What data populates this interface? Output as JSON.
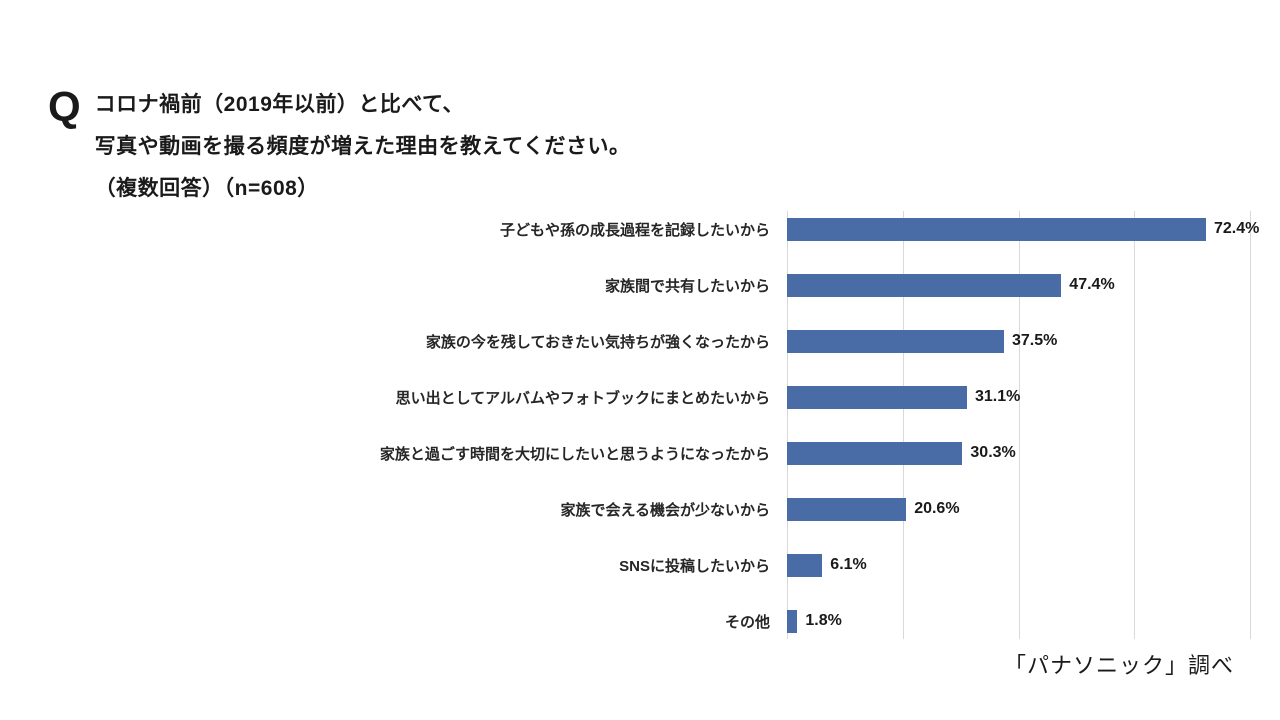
{
  "title": {
    "q_mark": "Q",
    "line1": "コロナ禍前（2019年以前）と比べて、",
    "line2": "写真や動画を撮る頻度が増えた理由を教えてください。",
    "line3": "（複数回答）（n=608）"
  },
  "source": "「パナソニック」調べ",
  "chart_data": {
    "type": "bar",
    "orientation": "horizontal",
    "title": "コロナ禍前（2019年以前）と比べて、写真や動画を撮る頻度が増えた理由を教えてください。（複数回答）（n=608）",
    "categories": [
      "子どもや孫の成長過程を記録したいから",
      "家族間で共有したいから",
      "家族の今を残しておきたい気持ちが強くなったから",
      "思い出としてアルバムやフォトブックにまとめたいから",
      "家族と過ごす時間を大切にしたいと思うようになったから",
      "家族で会える機会が少ないから",
      "SNSに投稿したいから",
      "その他"
    ],
    "values": [
      72.4,
      47.4,
      37.5,
      31.1,
      30.3,
      20.6,
      6.1,
      1.8
    ],
    "value_labels": [
      "72.4%",
      "47.4%",
      "37.5%",
      "31.1%",
      "30.3%",
      "20.6%",
      "6.1%",
      "1.8%"
    ],
    "xlabel": "",
    "ylabel": "",
    "xlim": [
      0,
      80
    ],
    "gridline_interval": 20,
    "grid": true,
    "legend": false,
    "bar_color": "#4a6ca6",
    "gridline_color": "#d9d9d9"
  }
}
